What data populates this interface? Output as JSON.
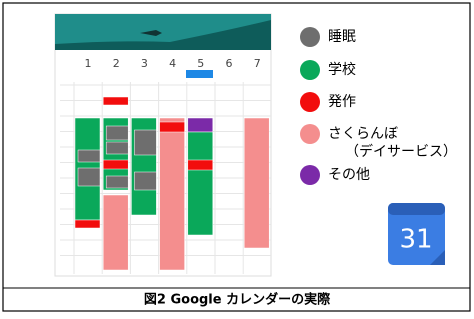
{
  "calendar": {
    "days": [
      "1",
      "2",
      "3",
      "4",
      "5",
      "6",
      "7"
    ]
  },
  "legend": [
    {
      "label": "睡眠",
      "color": "#6e6e6e"
    },
    {
      "label": "学校",
      "color": "#0aa85a"
    },
    {
      "label": "発作",
      "color": "#f20d0d"
    },
    {
      "label": "さくらんぼ",
      "sublabel": "（デイサービス）",
      "color": "#f48e8e"
    },
    {
      "label": "その他",
      "color": "#7b2aa8"
    }
  ],
  "icon": {
    "text": "31"
  },
  "caption": "図2 Google カレンダーの実際"
}
